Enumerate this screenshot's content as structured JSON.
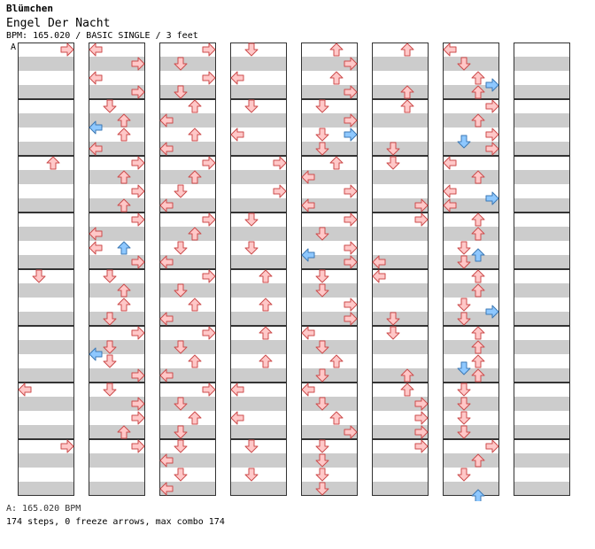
{
  "song": {
    "artist": "Blümchen",
    "title": "Engel Der Nacht",
    "info": "BPM: 165.020 / BASIC SINGLE / 3 feet",
    "bpm_marker": "A"
  },
  "footer": {
    "bpm_line": "A: 165.020 BPM",
    "stats_line": "174 steps, 0 freeze arrows, max combo 174"
  },
  "colors": {
    "arrow_red": "#ffc8c8",
    "arrow_red_stroke": "#cc4b4b",
    "arrow_blue": "#8ec8ff",
    "arrow_blue_stroke": "#3c78b4",
    "stripe": "#cccccc"
  },
  "chart_data": {
    "type": "step-chart",
    "lanes": [
      "left",
      "down",
      "up",
      "right"
    ],
    "columns": 8,
    "measures_per_column": 8,
    "beats_per_measure": 4,
    "notes": [
      {
        "c": 0,
        "b": 0,
        "d": "right",
        "k": "red"
      },
      {
        "c": 1,
        "b": 0,
        "d": "left",
        "k": "red"
      },
      {
        "c": 1,
        "b": 1,
        "d": "right",
        "k": "red"
      },
      {
        "c": 1,
        "b": 2,
        "d": "left",
        "k": "red"
      },
      {
        "c": 1,
        "b": 3,
        "d": "right",
        "k": "red"
      },
      {
        "c": 1,
        "b": 4,
        "d": "down",
        "k": "red"
      },
      {
        "c": 1,
        "b": 5,
        "d": "up",
        "k": "red"
      },
      {
        "c": 1,
        "b": 5.5,
        "d": "left",
        "k": "blue"
      },
      {
        "c": 1,
        "b": 6,
        "d": "up",
        "k": "red"
      },
      {
        "c": 1,
        "b": 7,
        "d": "left",
        "k": "red"
      },
      {
        "c": 0,
        "b": 8,
        "d": "up",
        "k": "red"
      },
      {
        "c": 1,
        "b": 8,
        "d": "right",
        "k": "red"
      },
      {
        "c": 1,
        "b": 9,
        "d": "up",
        "k": "red"
      },
      {
        "c": 1,
        "b": 10,
        "d": "right",
        "k": "red"
      },
      {
        "c": 1,
        "b": 11,
        "d": "up",
        "k": "red"
      },
      {
        "c": 1,
        "b": 12,
        "d": "right",
        "k": "red"
      },
      {
        "c": 1,
        "b": 13,
        "d": "left",
        "k": "red"
      },
      {
        "c": 1,
        "b": 14,
        "d": "left",
        "k": "red"
      },
      {
        "c": 1,
        "b": 14,
        "d": "up",
        "k": "blue"
      },
      {
        "c": 1,
        "b": 15,
        "d": "right",
        "k": "red"
      },
      {
        "c": 0,
        "b": 16,
        "d": "down",
        "k": "red"
      },
      {
        "c": 1,
        "b": 16,
        "d": "down",
        "k": "red"
      },
      {
        "c": 1,
        "b": 17,
        "d": "up",
        "k": "red"
      },
      {
        "c": 1,
        "b": 18,
        "d": "up",
        "k": "red"
      },
      {
        "c": 1,
        "b": 19,
        "d": "down",
        "k": "red"
      },
      {
        "c": 1,
        "b": 20,
        "d": "right",
        "k": "red"
      },
      {
        "c": 1,
        "b": 21,
        "d": "down",
        "k": "red"
      },
      {
        "c": 1,
        "b": 21.5,
        "d": "left",
        "k": "blue"
      },
      {
        "c": 1,
        "b": 22,
        "d": "down",
        "k": "red"
      },
      {
        "c": 1,
        "b": 23,
        "d": "right",
        "k": "red"
      },
      {
        "c": 0,
        "b": 24,
        "d": "left",
        "k": "red"
      },
      {
        "c": 1,
        "b": 24,
        "d": "down",
        "k": "red"
      },
      {
        "c": 1,
        "b": 25,
        "d": "right",
        "k": "red"
      },
      {
        "c": 1,
        "b": 26,
        "d": "right",
        "k": "red"
      },
      {
        "c": 1,
        "b": 27,
        "d": "up",
        "k": "red"
      },
      {
        "c": 0,
        "b": 28,
        "d": "right",
        "k": "red"
      },
      {
        "c": 1,
        "b": 28,
        "d": "right",
        "k": "red"
      },
      {
        "c": 2,
        "b": 0,
        "d": "right",
        "k": "red"
      },
      {
        "c": 2,
        "b": 1,
        "d": "down",
        "k": "red"
      },
      {
        "c": 2,
        "b": 2,
        "d": "right",
        "k": "red"
      },
      {
        "c": 2,
        "b": 3,
        "d": "down",
        "k": "red"
      },
      {
        "c": 2,
        "b": 4,
        "d": "up",
        "k": "red"
      },
      {
        "c": 2,
        "b": 5,
        "d": "left",
        "k": "red"
      },
      {
        "c": 2,
        "b": 6,
        "d": "up",
        "k": "red"
      },
      {
        "c": 2,
        "b": 7,
        "d": "left",
        "k": "red"
      },
      {
        "c": 2,
        "b": 8,
        "d": "right",
        "k": "red"
      },
      {
        "c": 2,
        "b": 9,
        "d": "up",
        "k": "red"
      },
      {
        "c": 2,
        "b": 10,
        "d": "down",
        "k": "red"
      },
      {
        "c": 2,
        "b": 11,
        "d": "left",
        "k": "red"
      },
      {
        "c": 2,
        "b": 12,
        "d": "right",
        "k": "red"
      },
      {
        "c": 2,
        "b": 13,
        "d": "up",
        "k": "red"
      },
      {
        "c": 2,
        "b": 14,
        "d": "down",
        "k": "red"
      },
      {
        "c": 2,
        "b": 15,
        "d": "left",
        "k": "red"
      },
      {
        "c": 2,
        "b": 16,
        "d": "right",
        "k": "red"
      },
      {
        "c": 2,
        "b": 17,
        "d": "down",
        "k": "red"
      },
      {
        "c": 2,
        "b": 18,
        "d": "up",
        "k": "red"
      },
      {
        "c": 2,
        "b": 19,
        "d": "left",
        "k": "red"
      },
      {
        "c": 2,
        "b": 20,
        "d": "right",
        "k": "red"
      },
      {
        "c": 2,
        "b": 21,
        "d": "down",
        "k": "red"
      },
      {
        "c": 2,
        "b": 22,
        "d": "up",
        "k": "red"
      },
      {
        "c": 2,
        "b": 23,
        "d": "left",
        "k": "red"
      },
      {
        "c": 2,
        "b": 24,
        "d": "right",
        "k": "red"
      },
      {
        "c": 2,
        "b": 25,
        "d": "down",
        "k": "red"
      },
      {
        "c": 2,
        "b": 26,
        "d": "up",
        "k": "red"
      },
      {
        "c": 2,
        "b": 27,
        "d": "down",
        "k": "red"
      },
      {
        "c": 2,
        "b": 28,
        "d": "down",
        "k": "red"
      },
      {
        "c": 2,
        "b": 29,
        "d": "left",
        "k": "red"
      },
      {
        "c": 2,
        "b": 30,
        "d": "down",
        "k": "red"
      },
      {
        "c": 2,
        "b": 31,
        "d": "left",
        "k": "red"
      },
      {
        "c": 3,
        "b": 0,
        "d": "down",
        "k": "red"
      },
      {
        "c": 3,
        "b": 2,
        "d": "left",
        "k": "red"
      },
      {
        "c": 3,
        "b": 4,
        "d": "down",
        "k": "red"
      },
      {
        "c": 3,
        "b": 6,
        "d": "left",
        "k": "red"
      },
      {
        "c": 3,
        "b": 8,
        "d": "right",
        "k": "red"
      },
      {
        "c": 3,
        "b": 10,
        "d": "right",
        "k": "red"
      },
      {
        "c": 3,
        "b": 12,
        "d": "down",
        "k": "red"
      },
      {
        "c": 3,
        "b": 14,
        "d": "down",
        "k": "red"
      },
      {
        "c": 3,
        "b": 16,
        "d": "up",
        "k": "red"
      },
      {
        "c": 3,
        "b": 18,
        "d": "up",
        "k": "red"
      },
      {
        "c": 3,
        "b": 20,
        "d": "up",
        "k": "red"
      },
      {
        "c": 3,
        "b": 22,
        "d": "up",
        "k": "red"
      },
      {
        "c": 3,
        "b": 24,
        "d": "left",
        "k": "red"
      },
      {
        "c": 3,
        "b": 26,
        "d": "left",
        "k": "red"
      },
      {
        "c": 3,
        "b": 28,
        "d": "down",
        "k": "red"
      },
      {
        "c": 3,
        "b": 30,
        "d": "down",
        "k": "red"
      },
      {
        "c": 4,
        "b": 0,
        "d": "up",
        "k": "red"
      },
      {
        "c": 4,
        "b": 1,
        "d": "right",
        "k": "red"
      },
      {
        "c": 4,
        "b": 2,
        "d": "up",
        "k": "red"
      },
      {
        "c": 4,
        "b": 3,
        "d": "right",
        "k": "red"
      },
      {
        "c": 4,
        "b": 4,
        "d": "down",
        "k": "red"
      },
      {
        "c": 4,
        "b": 5,
        "d": "right",
        "k": "red"
      },
      {
        "c": 4,
        "b": 6,
        "d": "down",
        "k": "red"
      },
      {
        "c": 4,
        "b": 6,
        "d": "right",
        "k": "blue"
      },
      {
        "c": 4,
        "b": 7,
        "d": "down",
        "k": "red"
      },
      {
        "c": 4,
        "b": 8,
        "d": "up",
        "k": "red"
      },
      {
        "c": 4,
        "b": 9,
        "d": "left",
        "k": "red"
      },
      {
        "c": 4,
        "b": 10,
        "d": "right",
        "k": "red"
      },
      {
        "c": 4,
        "b": 11,
        "d": "left",
        "k": "red"
      },
      {
        "c": 4,
        "b": 12,
        "d": "right",
        "k": "red"
      },
      {
        "c": 4,
        "b": 13,
        "d": "down",
        "k": "red"
      },
      {
        "c": 4,
        "b": 14,
        "d": "right",
        "k": "red"
      },
      {
        "c": 4,
        "b": 14.5,
        "d": "left",
        "k": "blue"
      },
      {
        "c": 4,
        "b": 15,
        "d": "right",
        "k": "red"
      },
      {
        "c": 4,
        "b": 16,
        "d": "down",
        "k": "red"
      },
      {
        "c": 4,
        "b": 17,
        "d": "down",
        "k": "red"
      },
      {
        "c": 4,
        "b": 18,
        "d": "right",
        "k": "red"
      },
      {
        "c": 4,
        "b": 19,
        "d": "right",
        "k": "red"
      },
      {
        "c": 4,
        "b": 20,
        "d": "left",
        "k": "red"
      },
      {
        "c": 4,
        "b": 21,
        "d": "down",
        "k": "red"
      },
      {
        "c": 4,
        "b": 22,
        "d": "up",
        "k": "red"
      },
      {
        "c": 4,
        "b": 23,
        "d": "down",
        "k": "red"
      },
      {
        "c": 4,
        "b": 24,
        "d": "left",
        "k": "red"
      },
      {
        "c": 4,
        "b": 25,
        "d": "down",
        "k": "red"
      },
      {
        "c": 4,
        "b": 26,
        "d": "up",
        "k": "red"
      },
      {
        "c": 4,
        "b": 27,
        "d": "right",
        "k": "red"
      },
      {
        "c": 4,
        "b": 28,
        "d": "down",
        "k": "red"
      },
      {
        "c": 4,
        "b": 29,
        "d": "down",
        "k": "red"
      },
      {
        "c": 4,
        "b": 30,
        "d": "down",
        "k": "red"
      },
      {
        "c": 4,
        "b": 31,
        "d": "down",
        "k": "red"
      },
      {
        "c": 5,
        "b": 0,
        "d": "up",
        "k": "red"
      },
      {
        "c": 5,
        "b": 3,
        "d": "up",
        "k": "red"
      },
      {
        "c": 5,
        "b": 4,
        "d": "up",
        "k": "red"
      },
      {
        "c": 5,
        "b": 7,
        "d": "down",
        "k": "red"
      },
      {
        "c": 5,
        "b": 8,
        "d": "down",
        "k": "red"
      },
      {
        "c": 5,
        "b": 11,
        "d": "right",
        "k": "red"
      },
      {
        "c": 5,
        "b": 12,
        "d": "right",
        "k": "red"
      },
      {
        "c": 5,
        "b": 15,
        "d": "left",
        "k": "red"
      },
      {
        "c": 5,
        "b": 16,
        "d": "left",
        "k": "red"
      },
      {
        "c": 5,
        "b": 19,
        "d": "down",
        "k": "red"
      },
      {
        "c": 5,
        "b": 20,
        "d": "down",
        "k": "red"
      },
      {
        "c": 5,
        "b": 23,
        "d": "up",
        "k": "red"
      },
      {
        "c": 5,
        "b": 24,
        "d": "up",
        "k": "red"
      },
      {
        "c": 5,
        "b": 25,
        "d": "right",
        "k": "red"
      },
      {
        "c": 5,
        "b": 26,
        "d": "right",
        "k": "red"
      },
      {
        "c": 5,
        "b": 27,
        "d": "right",
        "k": "red"
      },
      {
        "c": 5,
        "b": 28,
        "d": "right",
        "k": "red"
      },
      {
        "c": 6,
        "b": 0,
        "d": "left",
        "k": "red"
      },
      {
        "c": 6,
        "b": 1,
        "d": "down",
        "k": "red"
      },
      {
        "c": 6,
        "b": 2,
        "d": "up",
        "k": "red"
      },
      {
        "c": 6,
        "b": 2.5,
        "d": "right",
        "k": "blue"
      },
      {
        "c": 6,
        "b": 3,
        "d": "up",
        "k": "red"
      },
      {
        "c": 6,
        "b": 4,
        "d": "right",
        "k": "red"
      },
      {
        "c": 6,
        "b": 5,
        "d": "up",
        "k": "red"
      },
      {
        "c": 6,
        "b": 6,
        "d": "right",
        "k": "red"
      },
      {
        "c": 6,
        "b": 6.5,
        "d": "down",
        "k": "blue"
      },
      {
        "c": 6,
        "b": 7,
        "d": "right",
        "k": "red"
      },
      {
        "c": 6,
        "b": 8,
        "d": "left",
        "k": "red"
      },
      {
        "c": 6,
        "b": 9,
        "d": "up",
        "k": "red"
      },
      {
        "c": 6,
        "b": 10,
        "d": "left",
        "k": "red"
      },
      {
        "c": 6,
        "b": 10.5,
        "d": "right",
        "k": "blue"
      },
      {
        "c": 6,
        "b": 11,
        "d": "left",
        "k": "red"
      },
      {
        "c": 6,
        "b": 12,
        "d": "up",
        "k": "red"
      },
      {
        "c": 6,
        "b": 13,
        "d": "up",
        "k": "red"
      },
      {
        "c": 6,
        "b": 14,
        "d": "down",
        "k": "red"
      },
      {
        "c": 6,
        "b": 14.5,
        "d": "up",
        "k": "blue"
      },
      {
        "c": 6,
        "b": 15,
        "d": "down",
        "k": "red"
      },
      {
        "c": 6,
        "b": 16,
        "d": "up",
        "k": "red"
      },
      {
        "c": 6,
        "b": 17,
        "d": "up",
        "k": "red"
      },
      {
        "c": 6,
        "b": 18,
        "d": "down",
        "k": "red"
      },
      {
        "c": 6,
        "b": 18.5,
        "d": "right",
        "k": "blue"
      },
      {
        "c": 6,
        "b": 19,
        "d": "down",
        "k": "red"
      },
      {
        "c": 6,
        "b": 20,
        "d": "up",
        "k": "red"
      },
      {
        "c": 6,
        "b": 21,
        "d": "up",
        "k": "red"
      },
      {
        "c": 6,
        "b": 22,
        "d": "up",
        "k": "red"
      },
      {
        "c": 6,
        "b": 22.5,
        "d": "down",
        "k": "blue"
      },
      {
        "c": 6,
        "b": 23,
        "d": "up",
        "k": "red"
      },
      {
        "c": 6,
        "b": 24,
        "d": "down",
        "k": "red"
      },
      {
        "c": 6,
        "b": 25,
        "d": "down",
        "k": "red"
      },
      {
        "c": 6,
        "b": 26,
        "d": "down",
        "k": "red"
      },
      {
        "c": 6,
        "b": 27,
        "d": "down",
        "k": "red"
      },
      {
        "c": 6,
        "b": 28,
        "d": "right",
        "k": "red"
      },
      {
        "c": 6,
        "b": 29,
        "d": "up",
        "k": "red"
      },
      {
        "c": 6,
        "b": 30,
        "d": "down",
        "k": "red"
      },
      {
        "c": 6,
        "b": 31.5,
        "d": "up",
        "k": "blue"
      }
    ]
  }
}
